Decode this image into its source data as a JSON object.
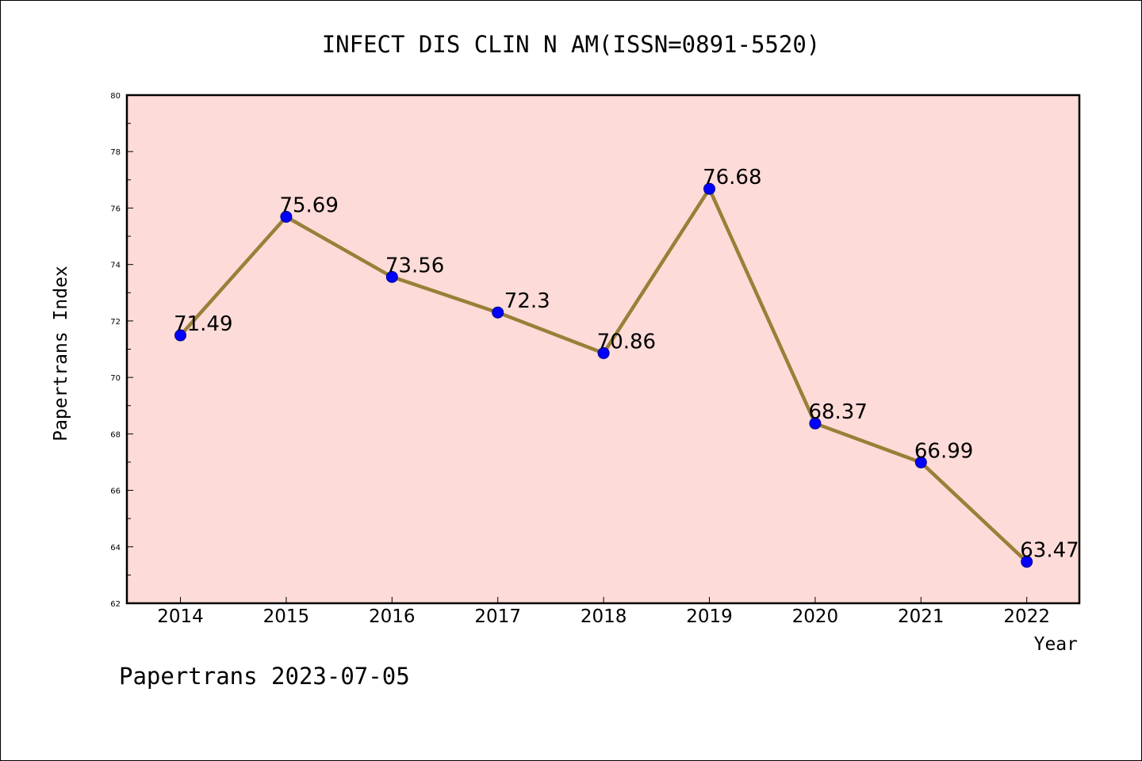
{
  "chart_data": {
    "type": "line",
    "title": "INFECT DIS CLIN N AM(ISSN=0891-5520)",
    "xlabel": "Year",
    "ylabel": "Papertrans Index",
    "categories": [
      "2014",
      "2015",
      "2016",
      "2017",
      "2018",
      "2019",
      "2020",
      "2021",
      "2022"
    ],
    "series": [
      {
        "values": [
          71.49,
          75.69,
          73.56,
          72.3,
          70.86,
          76.68,
          68.37,
          66.99,
          63.47
        ],
        "data_labels": [
          "71.49",
          "75.69",
          "73.56",
          "72.3",
          "70.86",
          "76.68",
          "68.37",
          "66.99",
          "63.47"
        ]
      }
    ],
    "ylim": [
      62,
      80
    ],
    "yticks": [
      62,
      64,
      66,
      68,
      70,
      72,
      74,
      76,
      78,
      80
    ],
    "ytick_labels": [
      "62",
      "64",
      "66",
      "68",
      "70",
      "72",
      "74",
      "76",
      "78",
      "80"
    ],
    "grid": false,
    "colors": {
      "plot_background": "#fddbd8",
      "line": "#9a7f38",
      "marker": "#0000ff"
    }
  },
  "footer": {
    "text": "Papertrans 2023-07-05"
  }
}
